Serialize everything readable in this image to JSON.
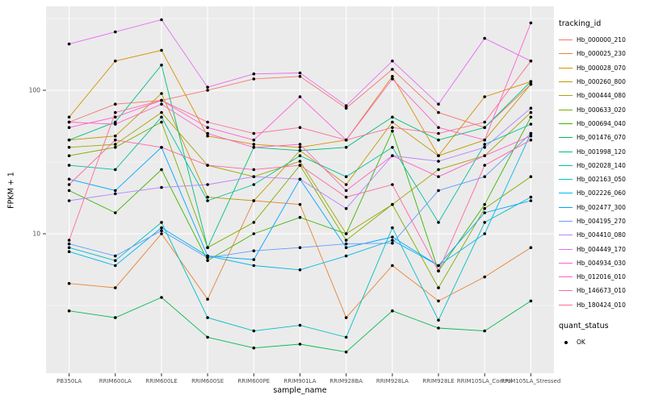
{
  "figure": {
    "y_axis_title": "FPKM + 1",
    "x_axis_title": "sample_name",
    "legend": {
      "tracking_title": "tracking_id",
      "quant_title": "quant_status",
      "quant_items": [
        {
          "label": "OK"
        }
      ]
    },
    "colors": {
      "panel": "#EBEBEB",
      "grid": "#FFFFFF",
      "tick_text": "#4D4D4D",
      "tick_mark": "#333333",
      "point": "#000000"
    }
  },
  "chart_data": {
    "type": "line",
    "title": "",
    "xlabel": "sample_name",
    "ylabel": "FPKM + 1",
    "y_scale": "log10",
    "ylim": [
      1.1,
      380
    ],
    "y_major_ticks": [
      10,
      100
    ],
    "y_minor_ticks": [
      3.162,
      31.62,
      316.2
    ],
    "grid": true,
    "legend_position": "right",
    "point_color": "#000000",
    "quant_status": "OK",
    "categories": [
      "PB350LA",
      "RRIM600LA",
      "RRIM600LE",
      "RRIM600SE",
      "RRIM600PE",
      "RRIM901LA",
      "RRIM928BA",
      "RRIM928LA",
      "RRIM928LE",
      "RRIM105LA_Control",
      "RRIM105LA_Stressed"
    ],
    "series": [
      {
        "name": "Hb_000000_210",
        "color": "#F8766D",
        "values": [
          60,
          80,
          85,
          100,
          120,
          125,
          75,
          140,
          70,
          55,
          110
        ]
      },
      {
        "name": "Hb_000025_230",
        "color": "#EA8331",
        "values": [
          4.5,
          4.2,
          10,
          3.5,
          17,
          16,
          2.6,
          6,
          3.4,
          5,
          8
        ]
      },
      {
        "name": "Hb_000028_070",
        "color": "#D89000",
        "values": [
          65,
          160,
          190,
          48,
          42,
          40,
          45,
          125,
          35,
          90,
          115
        ]
      },
      {
        "name": "Hb_000260_800",
        "color": "#C09B00",
        "values": [
          45,
          48,
          95,
          18,
          17,
          38,
          22,
          60,
          35,
          45,
          110
        ]
      },
      {
        "name": "Hb_000444_080",
        "color": "#A3A500",
        "values": [
          40,
          42,
          70,
          30,
          25,
          32,
          10,
          16,
          28,
          35,
          70
        ]
      },
      {
        "name": "Hb_000633_020",
        "color": "#7CAE00",
        "values": [
          35,
          40,
          60,
          8,
          12,
          30,
          9,
          16,
          4.2,
          15,
          25
        ]
      },
      {
        "name": "Hb_000694_040",
        "color": "#39B600",
        "values": [
          20,
          14,
          28,
          6.5,
          10,
          13,
          10,
          52,
          5.5,
          16,
          65
        ]
      },
      {
        "name": "Hb_001476_070",
        "color": "#00BB4E",
        "values": [
          2.9,
          2.6,
          3.6,
          1.9,
          1.6,
          1.7,
          1.5,
          2.9,
          2.2,
          2.1,
          3.4
        ]
      },
      {
        "name": "Hb_001998_120",
        "color": "#00BF7D",
        "values": [
          45,
          60,
          150,
          8,
          40,
          38,
          40,
          65,
          45,
          55,
          115
        ]
      },
      {
        "name": "Hb_002028_140",
        "color": "#00C1A3",
        "values": [
          30,
          28,
          65,
          17,
          22,
          35,
          25,
          40,
          12,
          42,
          58
        ]
      },
      {
        "name": "Hb_002163_050",
        "color": "#00BFC4",
        "values": [
          8,
          6.5,
          12,
          2.6,
          2.1,
          2.3,
          1.9,
          11,
          2.5,
          12,
          18
        ]
      },
      {
        "name": "Hb_002226_060",
        "color": "#00B8E7",
        "values": [
          7.5,
          6,
          11,
          7,
          6,
          5.6,
          7,
          9,
          6,
          10,
          50
        ]
      },
      {
        "name": "Hb_002477_300",
        "color": "#00A5FF",
        "values": [
          24,
          20,
          40,
          7,
          6.6,
          24,
          8,
          9.5,
          6,
          14,
          17
        ]
      },
      {
        "name": "Hb_004195_270",
        "color": "#619CFF",
        "values": [
          8.5,
          7,
          10.5,
          6.8,
          7.6,
          8,
          8.5,
          8.6,
          20,
          25,
          50
        ]
      },
      {
        "name": "Hb_004410_080",
        "color": "#B983FF",
        "values": [
          17,
          19,
          21,
          22,
          25,
          24,
          15,
          35,
          32,
          40,
          75
        ]
      },
      {
        "name": "Hb_004449_170",
        "color": "#E76BF3",
        "values": [
          210,
          255,
          310,
          105,
          130,
          132,
          78,
          160,
          80,
          230,
          160
        ]
      },
      {
        "name": "Hb_004934_030",
        "color": "#FD61D1",
        "values": [
          55,
          65,
          85,
          55,
          45,
          90,
          45,
          120,
          55,
          45,
          295
        ]
      },
      {
        "name": "Hb_012016_010",
        "color": "#FF61C7",
        "values": [
          60,
          58,
          80,
          50,
          40,
          42,
          20,
          35,
          25,
          35,
          48
        ]
      },
      {
        "name": "Hb_146673_010",
        "color": "#FF65A8",
        "values": [
          22,
          45,
          40,
          30,
          28,
          30,
          18,
          22,
          5.5,
          30,
          45
        ]
      },
      {
        "name": "Hb_180424_010",
        "color": "#FF6C91",
        "values": [
          9,
          70,
          85,
          60,
          50,
          55,
          45,
          55,
          50,
          60,
          160
        ]
      }
    ]
  }
}
